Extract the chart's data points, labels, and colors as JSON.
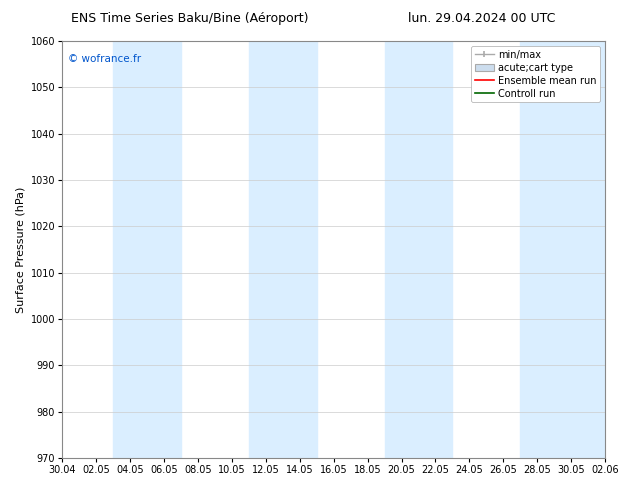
{
  "title_left": "ENS Time Series Baku/Bine (Aéroport)",
  "title_right": "lun. 29.04.2024 00 UTC",
  "ylabel": "Surface Pressure (hPa)",
  "ylim": [
    970,
    1060
  ],
  "yticks": [
    970,
    980,
    990,
    1000,
    1010,
    1020,
    1030,
    1040,
    1050,
    1060
  ],
  "xtick_labels": [
    "30.04",
    "02.05",
    "04.05",
    "06.05",
    "08.05",
    "10.05",
    "12.05",
    "14.05",
    "16.05",
    "18.05",
    "20.05",
    "22.05",
    "24.05",
    "26.05",
    "28.05",
    "30.05",
    "02.06"
  ],
  "watermark": "© wofrance.fr",
  "watermark_color": "#0055cc",
  "background_color": "#ffffff",
  "plot_bg_color": "#ffffff",
  "shaded_color": "#daeeff",
  "legend_entries": [
    "min/max",
    "acute;cart type",
    "Ensemble mean run",
    "Controll run"
  ],
  "title_fontsize": 9,
  "tick_fontsize": 7,
  "ylabel_fontsize": 8,
  "legend_fontsize": 7
}
